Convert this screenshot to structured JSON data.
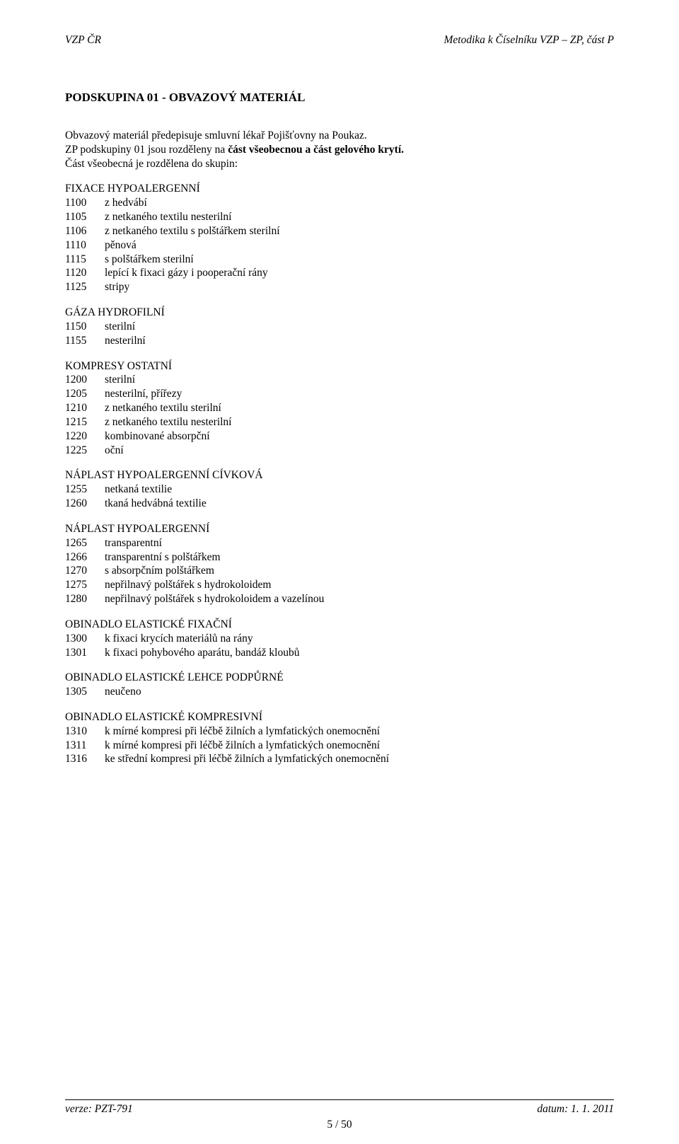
{
  "header": {
    "left": "VZP ČR",
    "right": "Metodika k Číselníku VZP – ZP, část P"
  },
  "title": "PODSKUPINA 01 - OBVAZOVÝ MATERIÁL",
  "intro": {
    "line1": "Obvazový materiál předepisuje smluvní lékař Pojišťovny na Poukaz.",
    "line2_pre": "ZP podskupiny 01 jsou rozděleny na ",
    "line2_bold": "část všeobecnou a část gelového krytí.",
    "line3": "Část všeobecná je rozdělena do skupin:"
  },
  "sections": [
    {
      "heading": "FIXACE HYPOALERGENNÍ",
      "items": [
        {
          "code": "1100",
          "label": "z hedvábí"
        },
        {
          "code": "1105",
          "label": "z netkaného textilu nesterilní"
        },
        {
          "code": "1106",
          "label": "z netkaného textilu s polštářkem sterilní"
        },
        {
          "code": "1110",
          "label": "pěnová"
        },
        {
          "code": "1115",
          "label": "s polštářkem sterilní"
        },
        {
          "code": "1120",
          "label": "lepící k fixaci gázy i pooperační rány"
        },
        {
          "code": "1125",
          "label": "stripy"
        }
      ]
    },
    {
      "heading": "GÁZA HYDROFILNÍ",
      "items": [
        {
          "code": "1150",
          "label": "sterilní"
        },
        {
          "code": "1155",
          "label": "nesterilní"
        }
      ]
    },
    {
      "heading": "KOMPRESY OSTATNÍ",
      "items": [
        {
          "code": "1200",
          "label": "sterilní"
        },
        {
          "code": "1205",
          "label": "nesterilní, přířezy"
        },
        {
          "code": "1210",
          "label": "z netkaného textilu sterilní"
        },
        {
          "code": "1215",
          "label": "z netkaného textilu nesterilní"
        },
        {
          "code": "1220",
          "label": "kombinované absorpční"
        },
        {
          "code": "1225",
          "label": "oční"
        }
      ]
    },
    {
      "heading": "NÁPLAST HYPOALERGENNÍ CÍVKOVÁ",
      "items": [
        {
          "code": "1255",
          "label": "netkaná textilie"
        },
        {
          "code": "1260",
          "label": "tkaná hedvábná textilie"
        }
      ]
    },
    {
      "heading": "NÁPLAST HYPOALERGENNÍ",
      "items": [
        {
          "code": "1265",
          "label": "transparentní"
        },
        {
          "code": "1266",
          "label": "transparentní s polštářkem"
        },
        {
          "code": "1270",
          "label": "s absorpčním polštářkem"
        },
        {
          "code": "1275",
          "label": "nepřilnavý polštářek s hydrokoloidem"
        },
        {
          "code": "1280",
          "label": "nepřilnavý polštářek s hydrokoloidem a vazelínou"
        }
      ]
    },
    {
      "heading": "OBINADLO ELASTICKÉ FIXAČNÍ",
      "items": [
        {
          "code": "1300",
          "label": "k fixaci krycích materiálů na rány"
        },
        {
          "code": "1301",
          "label": "k fixaci pohybového aparátu, bandáž kloubů"
        }
      ]
    },
    {
      "heading": "OBINADLO ELASTICKÉ LEHCE PODPŮRNÉ",
      "items": [
        {
          "code": "1305",
          "label": "neučeno"
        }
      ]
    },
    {
      "heading": "OBINADLO ELASTICKÉ KOMPRESIVNÍ",
      "items": [
        {
          "code": "1310",
          "label": "k mírné kompresi při léčbě žilních a lymfatických onemocnění"
        },
        {
          "code": "1311",
          "label": "k mírné kompresi při léčbě žilních a lymfatických onemocnění"
        },
        {
          "code": "1316",
          "label": "ke střední kompresi při léčbě žilních a lymfatických onemocnění"
        }
      ]
    }
  ],
  "footer": {
    "left": "verze: PZT-791",
    "right": "datum: 1. 1. 2011",
    "center": "5 / 50"
  }
}
